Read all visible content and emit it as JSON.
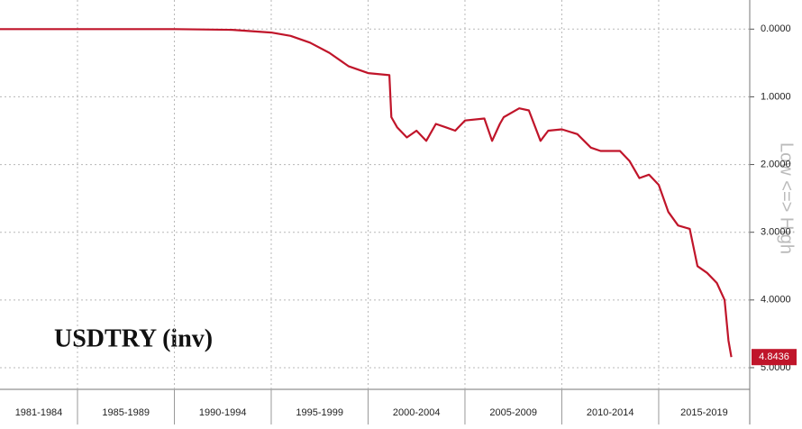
{
  "chart_data": {
    "type": "line",
    "title": "USDTRY (inv)",
    "y_axis_label": "Low <=> High",
    "categories": [
      "1981-1984",
      "1985-1989",
      "1990-1994",
      "1995-1999",
      "2000-2004",
      "2005-2009",
      "2010-2014",
      "2015-2019"
    ],
    "xlim": [
      1981,
      2019.7
    ],
    "ylim": [
      -0.43,
      5.32
    ],
    "y_inverted": true,
    "yticks": [
      {
        "value": 0,
        "label": "0.0000"
      },
      {
        "value": 1,
        "label": "1.0000"
      },
      {
        "value": 2,
        "label": "2.0000"
      },
      {
        "value": 3,
        "label": "3.0000"
      },
      {
        "value": 4,
        "label": "4.0000"
      },
      {
        "value": 5,
        "label": "5.0000"
      }
    ],
    "grid": true,
    "series": [
      {
        "name": "USDTRY",
        "color": "#c0152a",
        "x": [
          1981,
          1985,
          1990,
          1993,
          1994,
          1995,
          1996,
          1997,
          1998,
          1999,
          2000,
          2001.1,
          2001.2,
          2001.5,
          2002,
          2002.5,
          2003,
          2003.5,
          2004,
          2004.5,
          2005,
          2006,
          2006.4,
          2006.8,
          2007,
          2007.8,
          2008.3,
          2008.9,
          2009.3,
          2010,
          2010.8,
          2011.5,
          2012,
          2013,
          2013.5,
          2014,
          2014.5,
          2015,
          2015.5,
          2016,
          2016.6,
          2017,
          2017.5,
          2018,
          2018.4,
          2018.6,
          2018.75
        ],
        "values": [
          0,
          0,
          0,
          0.01,
          0.03,
          0.05,
          0.1,
          0.2,
          0.35,
          0.55,
          0.65,
          0.68,
          1.3,
          1.45,
          1.6,
          1.5,
          1.65,
          1.4,
          1.45,
          1.5,
          1.35,
          1.32,
          1.65,
          1.4,
          1.3,
          1.17,
          1.2,
          1.65,
          1.5,
          1.48,
          1.55,
          1.75,
          1.8,
          1.8,
          1.95,
          2.2,
          2.15,
          2.3,
          2.7,
          2.9,
          2.95,
          3.5,
          3.6,
          3.75,
          4.0,
          4.6,
          4.8436
        ]
      }
    ]
  }
}
